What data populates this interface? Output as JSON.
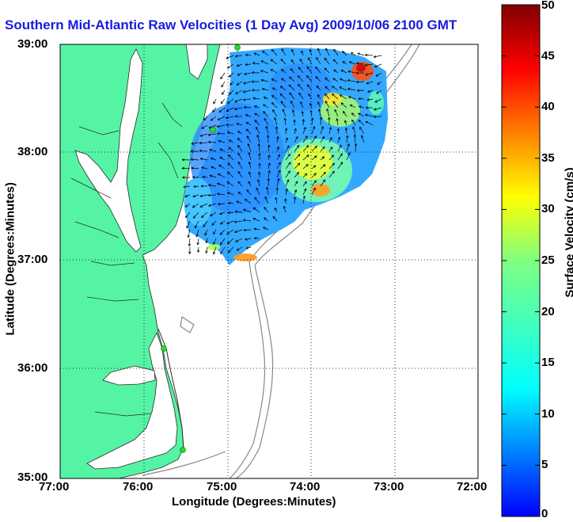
{
  "title": "Southern Mid-Atlantic Raw Velocities (1 Day Avg) 2009/10/06 2100 GMT",
  "x_axis": {
    "label": "Longitude (Degrees:Minutes)",
    "ticks": [
      "77:00",
      "76:00",
      "75:00",
      "74:00",
      "73:00",
      "72:00"
    ]
  },
  "y_axis": {
    "label": "Latitude (Degrees:Minutes)",
    "ticks": [
      "39:00",
      "38:00",
      "37:00",
      "36:00",
      "35:00"
    ]
  },
  "colorbar": {
    "label": "Surface Velocity (cm/s)",
    "ticks": [
      "50",
      "45",
      "40",
      "35",
      "30",
      "25",
      "20",
      "15",
      "10",
      "5",
      "0"
    ],
    "range": [
      0,
      50
    ],
    "colormap": "jet"
  },
  "map": {
    "extent": {
      "lon": [
        -77,
        -72
      ],
      "lat": [
        35,
        39
      ]
    },
    "land_color": "#55f4a4",
    "water_color": "#ffffff",
    "grid": "dotted"
  },
  "colors": {
    "title": "#1a1adf",
    "station_marker": "#22dd22"
  }
}
